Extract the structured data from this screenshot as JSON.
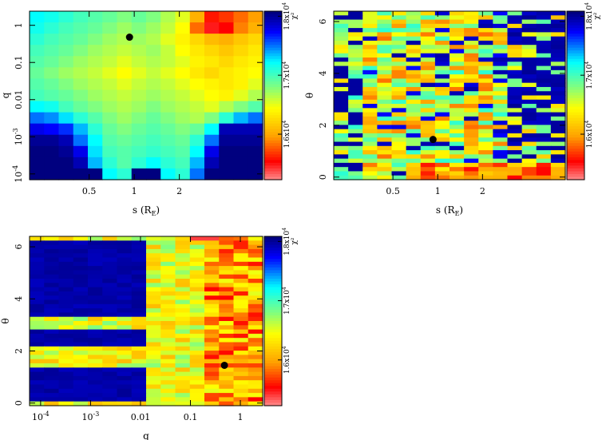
{
  "colors": {
    "scale_high": "#00007f",
    "scale_mid_high": "#00ffff",
    "scale_mid": "#ffff00",
    "scale_low": "#ff0000",
    "scale_lowest": "#ff8080",
    "marker": "#000000"
  },
  "chart_data": [
    {
      "type": "heatmap",
      "id": "s_q",
      "title": "",
      "xlabel": "s (R_E)",
      "ylabel": "q",
      "x_log": true,
      "y_log": true,
      "xlim": [
        0.2,
        7.2
      ],
      "ylim": [
        7e-05,
        2.4
      ],
      "xticks": [
        {
          "v": 0.5,
          "label": "0.5"
        },
        {
          "v": 1,
          "label": "1"
        },
        {
          "v": 2,
          "label": "2"
        }
      ],
      "yticks": [
        {
          "v": 0.0001,
          "label": "10^-4"
        },
        {
          "v": 0.001,
          "label": "10^-3"
        },
        {
          "v": 0.01,
          "label": "0.01"
        },
        {
          "v": 0.1,
          "label": "0.1"
        },
        {
          "v": 1,
          "label": "1"
        }
      ],
      "cells": {
        "cols": 16,
        "rows": 15,
        "values": [
          [
            0.3,
            0.32,
            0.35,
            0.38,
            0.4,
            0.42,
            0.45,
            0.42,
            0.45,
            0.5,
            0.55,
            0.72,
            0.88,
            0.85,
            0.8,
            0.75
          ],
          [
            0.32,
            0.35,
            0.38,
            0.4,
            0.42,
            0.45,
            0.48,
            0.45,
            0.48,
            0.52,
            0.58,
            0.8,
            0.92,
            0.9,
            0.78,
            0.72
          ],
          [
            0.35,
            0.38,
            0.4,
            0.42,
            0.45,
            0.48,
            0.5,
            0.48,
            0.5,
            0.55,
            0.6,
            0.65,
            0.7,
            0.72,
            0.68,
            0.65
          ],
          [
            0.38,
            0.4,
            0.42,
            0.45,
            0.48,
            0.5,
            0.52,
            0.5,
            0.48,
            0.52,
            0.58,
            0.62,
            0.65,
            0.68,
            0.65,
            0.62
          ],
          [
            0.4,
            0.42,
            0.45,
            0.48,
            0.5,
            0.52,
            0.55,
            0.52,
            0.5,
            0.52,
            0.55,
            0.6,
            0.62,
            0.65,
            0.62,
            0.6
          ],
          [
            0.42,
            0.45,
            0.48,
            0.5,
            0.52,
            0.55,
            0.58,
            0.55,
            0.52,
            0.55,
            0.58,
            0.62,
            0.65,
            0.62,
            0.6,
            0.58
          ],
          [
            0.4,
            0.42,
            0.45,
            0.48,
            0.5,
            0.52,
            0.55,
            0.52,
            0.5,
            0.52,
            0.55,
            0.58,
            0.6,
            0.62,
            0.6,
            0.55
          ],
          [
            0.38,
            0.4,
            0.42,
            0.45,
            0.48,
            0.5,
            0.52,
            0.5,
            0.48,
            0.5,
            0.52,
            0.55,
            0.58,
            0.6,
            0.55,
            0.5
          ],
          [
            0.3,
            0.32,
            0.38,
            0.42,
            0.45,
            0.48,
            0.5,
            0.48,
            0.45,
            0.48,
            0.5,
            0.52,
            0.55,
            0.5,
            0.45,
            0.4
          ],
          [
            0.2,
            0.22,
            0.28,
            0.35,
            0.4,
            0.45,
            0.48,
            0.45,
            0.42,
            0.45,
            0.48,
            0.5,
            0.45,
            0.35,
            0.25,
            0.2
          ],
          [
            0.1,
            0.12,
            0.15,
            0.25,
            0.35,
            0.42,
            0.45,
            0.42,
            0.4,
            0.42,
            0.45,
            0.42,
            0.3,
            0.05,
            0.05,
            0.05
          ],
          [
            0.02,
            0.02,
            0.05,
            0.2,
            0.3,
            0.4,
            0.42,
            0.4,
            0.38,
            0.4,
            0.42,
            0.35,
            0.2,
            0.02,
            0.02,
            0.02
          ],
          [
            0.0,
            0.0,
            0.02,
            0.1,
            0.28,
            0.38,
            0.4,
            0.38,
            0.36,
            0.38,
            0.4,
            0.3,
            0.1,
            0.0,
            0.0,
            0.0
          ],
          [
            0.0,
            0.0,
            0.0,
            0.05,
            0.25,
            0.35,
            0.4,
            0.35,
            0.3,
            0.35,
            0.38,
            0.25,
            0.05,
            0.0,
            0.0,
            0.0
          ],
          [
            0.0,
            0.0,
            0.0,
            0.0,
            0.0,
            0.3,
            0.35,
            0.0,
            0.0,
            0.3,
            0.35,
            0.2,
            0.0,
            0.0,
            0.0,
            0.0
          ]
        ]
      },
      "marker": {
        "x": 0.93,
        "y": 0.48
      },
      "colorbar": {
        "label": "χ²",
        "ticks": [
          {
            "frac": 0.97,
            "label": "1.8x10^4"
          },
          {
            "frac": 0.62,
            "label": "1.7x10^4"
          },
          {
            "frac": 0.27,
            "label": "1.6x10^4"
          }
        ]
      }
    },
    {
      "type": "heatmap",
      "id": "s_theta",
      "title": "",
      "xlabel": "s (R_E)",
      "ylabel": "θ",
      "x_log": true,
      "y_log": false,
      "xlim": [
        0.2,
        7.2
      ],
      "ylim": [
        -0.1,
        6.4
      ],
      "xticks": [
        {
          "v": 0.5,
          "label": "0.5"
        },
        {
          "v": 1,
          "label": "1"
        },
        {
          "v": 2,
          "label": "2"
        }
      ],
      "yticks": [
        {
          "v": 0,
          "label": "0"
        },
        {
          "v": 2,
          "label": "2"
        },
        {
          "v": 4,
          "label": "4"
        },
        {
          "v": 6,
          "label": "6"
        }
      ],
      "cells": {
        "cols": 16,
        "rows": 40,
        "seed": 7
      },
      "marker": {
        "x": 0.93,
        "y": 1.45
      },
      "colorbar": {
        "label": "χ²",
        "ticks": [
          {
            "frac": 0.97,
            "label": "1.8x10^4"
          },
          {
            "frac": 0.62,
            "label": "1.7x10^4"
          },
          {
            "frac": 0.27,
            "label": "1.6x10^4"
          }
        ]
      }
    },
    {
      "type": "heatmap",
      "id": "q_theta",
      "title": "",
      "xlabel": "q",
      "ylabel": "θ",
      "x_log": true,
      "y_log": false,
      "xlim": [
        6e-05,
        2.8
      ],
      "ylim": [
        -0.1,
        6.4
      ],
      "xticks": [
        {
          "v": 0.0001,
          "label": "10^-4"
        },
        {
          "v": 0.001,
          "label": "10^-3"
        },
        {
          "v": 0.01,
          "label": "0.01"
        },
        {
          "v": 0.1,
          "label": "0.1"
        },
        {
          "v": 1,
          "label": "1"
        }
      ],
      "yticks": [
        {
          "v": 0,
          "label": "0"
        },
        {
          "v": 2,
          "label": "2"
        },
        {
          "v": 4,
          "label": "4"
        },
        {
          "v": 6,
          "label": "6"
        }
      ],
      "cells": {
        "cols": 16,
        "rows": 40,
        "seed": 13
      },
      "marker": {
        "x": 0.48,
        "y": 1.45
      },
      "colorbar": {
        "label": "χ²",
        "ticks": [
          {
            "frac": 0.97,
            "label": "1.8x10^4"
          },
          {
            "frac": 0.62,
            "label": "1.7x10^4"
          },
          {
            "frac": 0.27,
            "label": "1.6x10^4"
          }
        ]
      }
    }
  ]
}
